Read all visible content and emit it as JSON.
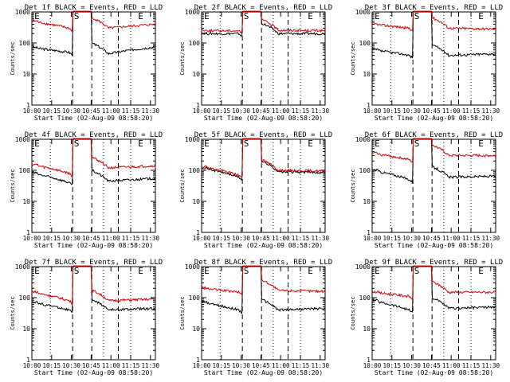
{
  "chart_data": [
    {
      "type": "line",
      "title": "Det 1f BLACK = Events, RED = LLD",
      "xlabel": "Start Time (02-Aug-09 08:58:20)",
      "ylabel": "Counts/sec",
      "yscale": "log",
      "ylim": [
        1,
        1000
      ],
      "ytick_labels": [
        "1",
        "10",
        "100",
        "1000"
      ],
      "xtick_labels": [
        "10:00",
        "10:15",
        "10:30",
        "10:45",
        "11:00",
        "11:15",
        "11:30"
      ],
      "markers": [
        "E",
        "S",
        "E"
      ],
      "series": [
        {
          "color": "#000000",
          "level_pre": 70,
          "dip": 50,
          "post": 45,
          "recover": 75
        },
        {
          "color": "#d40000",
          "level_pre": 500,
          "dip": 300,
          "post": 300,
          "recover": 400
        }
      ]
    },
    {
      "type": "line",
      "title": "Det 2f BLACK = Events, RED = LLD",
      "xlabel": "Start Time (02-Aug-09 08:58:20)",
      "ylabel": "Counts/sec",
      "yscale": "log",
      "ylim": [
        1,
        1000
      ],
      "ytick_labels": [
        "1",
        "10",
        "100",
        "1000"
      ],
      "xtick_labels": [
        "10:00",
        "10:15",
        "10:30",
        "10:45",
        "11:00",
        "11:15",
        "11:30"
      ],
      "markers": [
        "E",
        "S",
        "E"
      ],
      "series": [
        {
          "color": "#000000",
          "level_pre": 200,
          "dip": 200,
          "post": 200,
          "recover": 200
        },
        {
          "color": "#d40000",
          "level_pre": 250,
          "dip": 250,
          "post": 260,
          "recover": 250
        }
      ]
    },
    {
      "type": "line",
      "title": "Det 3f BLACK = Events, RED = LLD",
      "xlabel": "Start Time (02-Aug-09 08:58:20)",
      "ylabel": "Counts/sec",
      "yscale": "log",
      "ylim": [
        1,
        1000
      ],
      "ytick_labels": [
        "1",
        "10",
        "100",
        "1000"
      ],
      "xtick_labels": [
        "10:00",
        "10:15",
        "10:30",
        "10:45",
        "11:00",
        "11:15",
        "11:30"
      ],
      "markers": [
        "E",
        "S",
        "E"
      ],
      "series": [
        {
          "color": "#000000",
          "level_pre": 60,
          "dip": 40,
          "post": 40,
          "recover": 45
        },
        {
          "color": "#d40000",
          "level_pre": 400,
          "dip": 300,
          "post": 300,
          "recover": 280
        }
      ]
    },
    {
      "type": "line",
      "title": "Det 4f BLACK = Events, RED = LLD",
      "xlabel": "Start Time (02-Aug-09 08:58:20)",
      "ylabel": "Counts/sec",
      "yscale": "log",
      "ylim": [
        1,
        1000
      ],
      "ytick_labels": [
        "1",
        "10",
        "100",
        "1000"
      ],
      "xtick_labels": [
        "10:00",
        "10:15",
        "10:30",
        "10:45",
        "11:00",
        "11:15",
        "11:30"
      ],
      "markers": [
        "E",
        "S",
        "E"
      ],
      "series": [
        {
          "color": "#000000",
          "level_pre": 80,
          "dip": 40,
          "post": 45,
          "recover": 55
        },
        {
          "color": "#d40000",
          "level_pre": 150,
          "dip": 80,
          "post": 120,
          "recover": 140
        }
      ]
    },
    {
      "type": "line",
      "title": "Det 5f BLACK = Events, RED = LLD",
      "xlabel": "Start Time (02-Aug-09 08:58:20)",
      "ylabel": "Counts/sec",
      "yscale": "log",
      "ylim": [
        1,
        1000
      ],
      "ytick_labels": [
        "1",
        "10",
        "100",
        "1000"
      ],
      "xtick_labels": [
        "10:00",
        "10:15",
        "10:30",
        "10:45",
        "11:00",
        "11:15",
        "11:30"
      ],
      "markers": [
        "E",
        "S",
        "E"
      ],
      "series": [
        {
          "color": "#000000",
          "level_pre": 120,
          "dip": 60,
          "post": 90,
          "recover": 85
        },
        {
          "color": "#d40000",
          "level_pre": 130,
          "dip": 70,
          "post": 100,
          "recover": 95
        }
      ]
    },
    {
      "type": "line",
      "title": "Det 6f BLACK = Events, RED = LLD",
      "xlabel": "Start Time (02-Aug-09 08:58:20)",
      "ylabel": "Counts/sec",
      "yscale": "log",
      "ylim": [
        1,
        1000
      ],
      "ytick_labels": [
        "1",
        "10",
        "100",
        "1000"
      ],
      "xtick_labels": [
        "10:00",
        "10:15",
        "10:30",
        "10:45",
        "11:00",
        "11:15",
        "11:30"
      ],
      "markers": [
        "E",
        "S",
        "E"
      ],
      "series": [
        {
          "color": "#000000",
          "level_pre": 100,
          "dip": 50,
          "post": 60,
          "recover": 65
        },
        {
          "color": "#d40000",
          "level_pre": 350,
          "dip": 220,
          "post": 300,
          "recover": 300
        }
      ]
    },
    {
      "type": "line",
      "title": "Det 7f BLACK = Events, RED = LLD",
      "xlabel": "Start Time (02-Aug-09 08:58:20)",
      "ylabel": "Counts/sec",
      "yscale": "log",
      "ylim": [
        1,
        1000
      ],
      "ytick_labels": [
        "1",
        "10",
        "100",
        "1000"
      ],
      "xtick_labels": [
        "10:00",
        "10:15",
        "10:30",
        "10:45",
        "11:00",
        "11:15",
        "11:30"
      ],
      "markers": [
        "E",
        "S",
        "E"
      ],
      "series": [
        {
          "color": "#000000",
          "level_pre": 70,
          "dip": 40,
          "post": 40,
          "recover": 45
        },
        {
          "color": "#d40000",
          "level_pre": 150,
          "dip": 80,
          "post": 80,
          "recover": 90
        }
      ]
    },
    {
      "type": "line",
      "title": "Det 8f BLACK = Events, RED = LLD",
      "xlabel": "Start Time (02-Aug-09 08:58:20)",
      "ylabel": "Counts/sec",
      "yscale": "log",
      "ylim": [
        1,
        1000
      ],
      "ytick_labels": [
        "1",
        "10",
        "100",
        "1000"
      ],
      "xtick_labels": [
        "10:00",
        "10:15",
        "10:30",
        "10:45",
        "11:00",
        "11:15",
        "11:30"
      ],
      "markers": [
        "E",
        "S",
        "E"
      ],
      "series": [
        {
          "color": "#000000",
          "level_pre": 70,
          "dip": 40,
          "post": 40,
          "recover": 45
        },
        {
          "color": "#d40000",
          "level_pre": 200,
          "dip": 150,
          "post": 170,
          "recover": 160
        }
      ]
    },
    {
      "type": "line",
      "title": "Det 9f BLACK = Events, RED = LLD",
      "xlabel": "Start Time (02-Aug-09 08:58:20)",
      "ylabel": "Counts/sec",
      "yscale": "log",
      "ylim": [
        1,
        1000
      ],
      "ytick_labels": [
        "1",
        "10",
        "100",
        "1000"
      ],
      "xtick_labels": [
        "10:00",
        "10:15",
        "10:30",
        "10:45",
        "11:00",
        "11:15",
        "11:30"
      ],
      "markers": [
        "E",
        "S",
        "E"
      ],
      "series": [
        {
          "color": "#000000",
          "level_pre": 80,
          "dip": 40,
          "post": 45,
          "recover": 50
        },
        {
          "color": "#d40000",
          "level_pre": 150,
          "dip": 110,
          "post": 150,
          "recover": 150
        }
      ]
    }
  ]
}
